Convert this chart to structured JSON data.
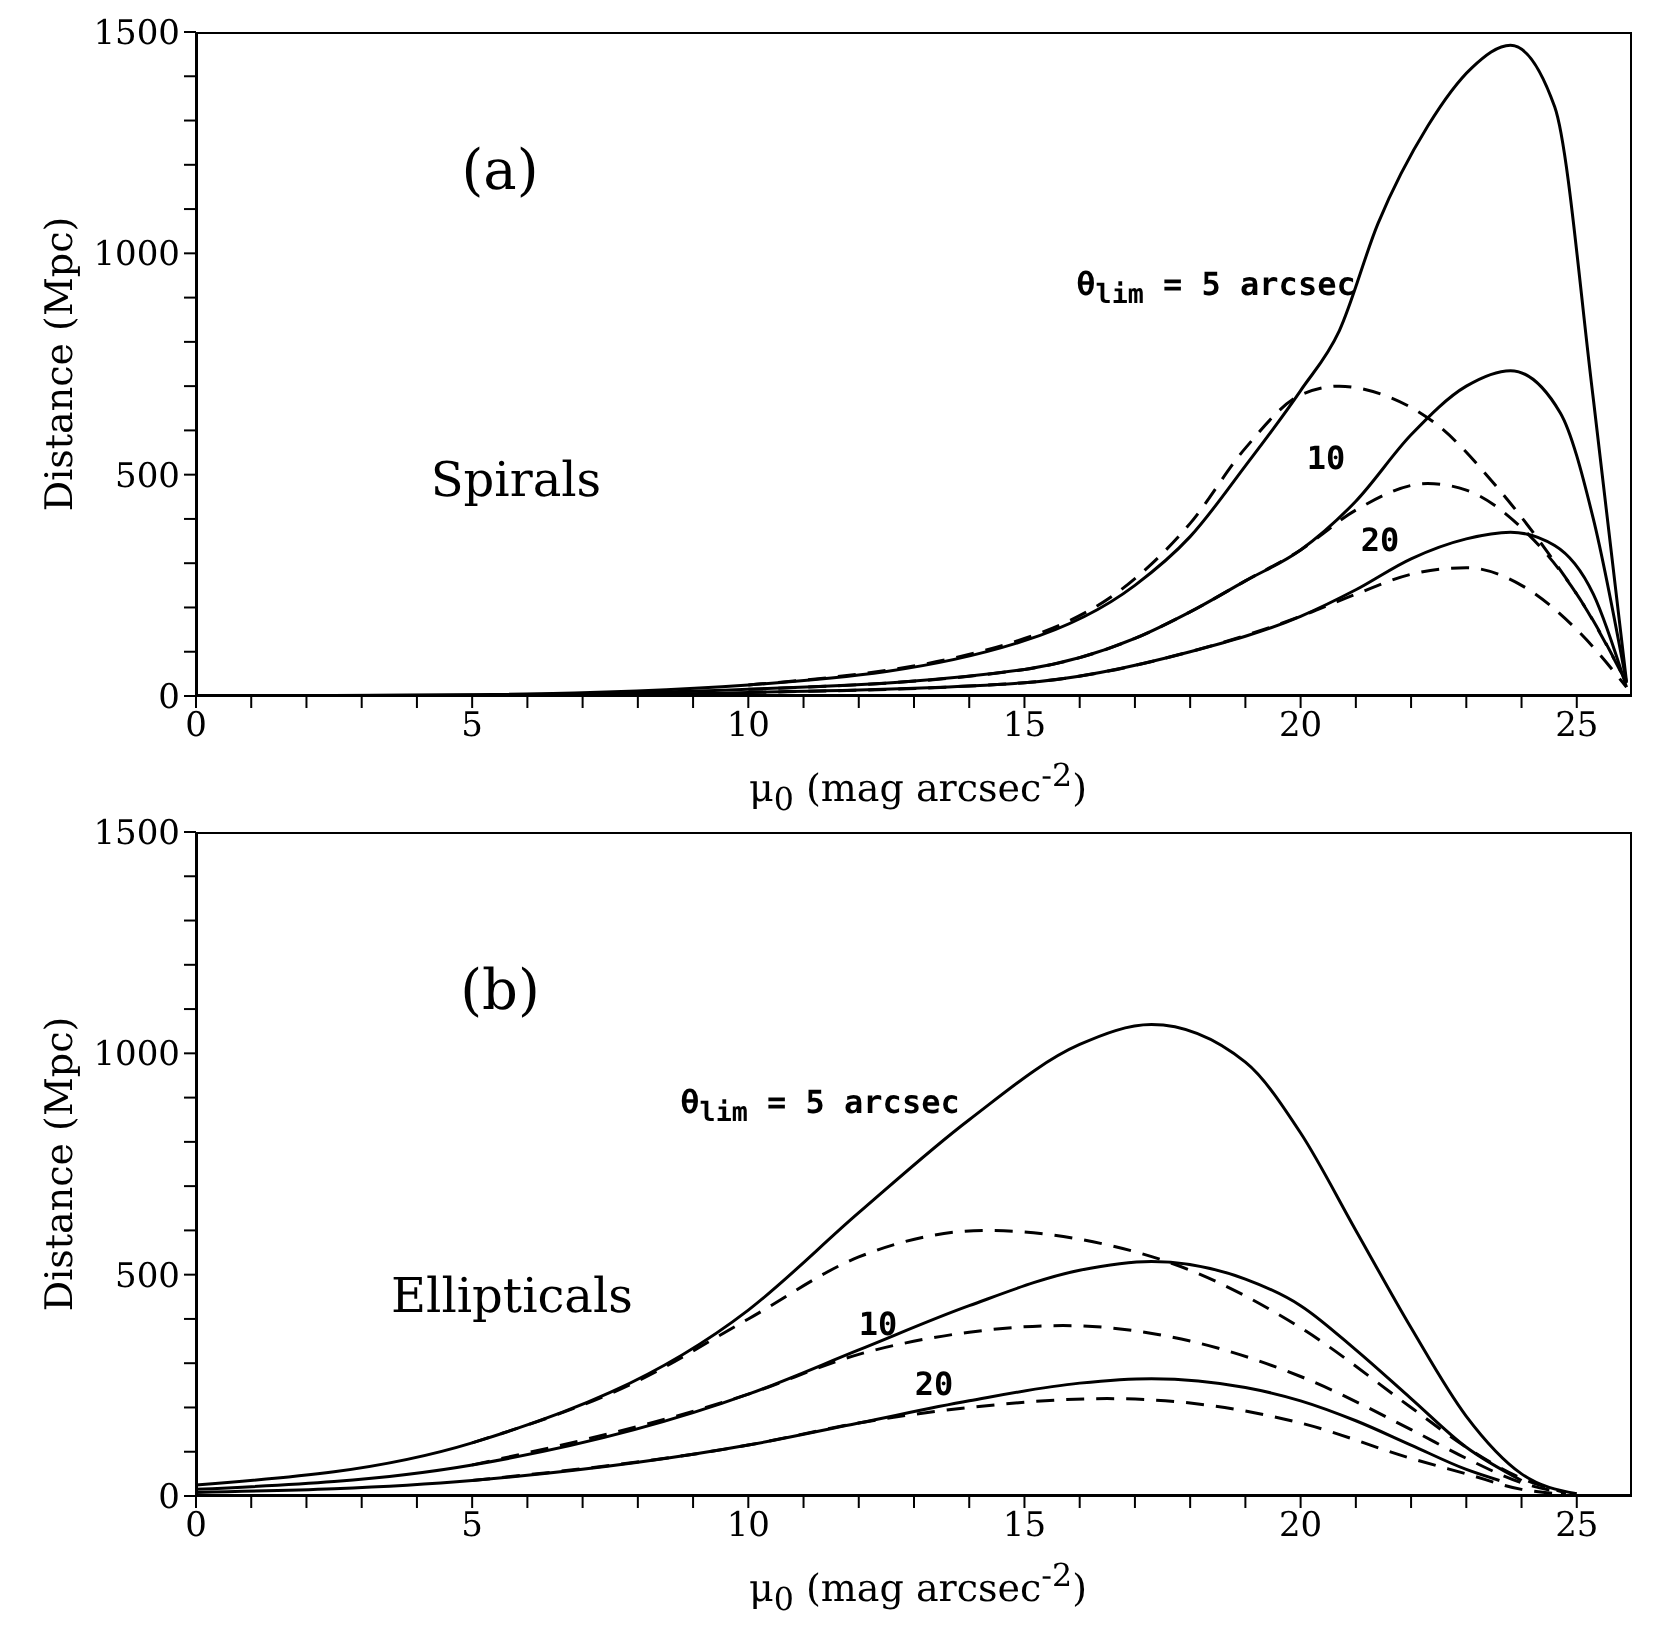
{
  "chart_data": [
    {
      "type": "line",
      "xlabel": "μ$_{0}$ (mag arcsec$^{-2}$)",
      "ylabel": "Distance (Mpc)",
      "xlim": [
        0,
        26
      ],
      "ylim": [
        0,
        1500
      ],
      "xticks": [
        0,
        {
          "value": 1,
          "label": null
        },
        {
          "value": 2,
          "label": null
        },
        {
          "value": 3,
          "label": null
        },
        {
          "value": 4,
          "label": null
        },
        5,
        {
          "value": 6,
          "label": null
        },
        {
          "value": 7,
          "label": null
        },
        {
          "value": 8,
          "label": null
        },
        {
          "value": 9,
          "label": null
        },
        10,
        {
          "value": 11,
          "label": null
        },
        {
          "value": 12,
          "label": null
        },
        {
          "value": 13,
          "label": null
        },
        {
          "value": 14,
          "label": null
        },
        15,
        {
          "value": 16,
          "label": null
        },
        {
          "value": 17,
          "label": null
        },
        {
          "value": 18,
          "label": null
        },
        {
          "value": 19,
          "label": null
        },
        20,
        {
          "value": 21,
          "label": null
        },
        {
          "value": 22,
          "label": null
        },
        {
          "value": 23,
          "label": null
        },
        {
          "value": 24,
          "label": null
        },
        25
      ],
      "yticks": [
        0,
        {
          "value": 100,
          "label": null
        },
        {
          "value": 200,
          "label": null
        },
        {
          "value": 300,
          "label": null
        },
        {
          "value": 400,
          "label": null
        },
        500,
        {
          "value": 600,
          "label": null
        },
        {
          "value": 700,
          "label": null
        },
        {
          "value": 800,
          "label": null
        },
        {
          "value": 900,
          "label": null
        },
        1000,
        {
          "value": 1100,
          "label": null
        },
        {
          "value": 1200,
          "label": null
        },
        {
          "value": 1300,
          "label": null
        },
        {
          "value": 1400,
          "label": null
        },
        1500
      ],
      "grid": false,
      "legend": false,
      "marker": "none",
      "annotations": [
        "(a)",
        "Spirals",
        "θ$_{lim}$ = 5 arcsec",
        "10",
        "20"
      ],
      "series": [
        {
          "color": "#000000",
          "line_style": "solid",
          "x": [
            0,
            5,
            10,
            15,
            17,
            18,
            19,
            20,
            20.7,
            21.4,
            22.3,
            23.1,
            23.8,
            24.6,
            25.3,
            25.9
          ],
          "values": [
            0,
            3,
            25,
            125,
            250,
            360,
            520,
            690,
            825,
            1067,
            1287,
            1419,
            1470,
            1331,
            671,
            33
          ]
        },
        {
          "color": "#000000",
          "line_style": "dashed",
          "x": [
            10,
            15,
            17,
            18,
            19,
            20,
            20.7,
            21.5,
            22.5,
            23.5,
            24.5,
            25.3,
            25.9
          ],
          "values": [
            25,
            130,
            265,
            390,
            560,
            680,
            700,
            680,
            610,
            480,
            320,
            170,
            30
          ]
        },
        {
          "color": "#000000",
          "line_style": "solid",
          "x": [
            3,
            5,
            10,
            15,
            17,
            18,
            19,
            20,
            21,
            22,
            23,
            23.8,
            24.7,
            25.3,
            25.9
          ],
          "values": [
            1,
            2,
            15,
            60,
            130,
            190,
            260,
            330,
            440,
            590,
            700,
            735,
            640,
            400,
            30
          ]
        },
        {
          "color": "#000000",
          "line_style": "dashed",
          "x": [
            10,
            15,
            17,
            18,
            19,
            20,
            21,
            22.3,
            23,
            24,
            25,
            25.9
          ],
          "values": [
            15,
            60,
            130,
            190,
            260,
            330,
            420,
            480,
            465,
            380,
            230,
            30
          ]
        },
        {
          "color": "#000000",
          "line_style": "solid",
          "x": [
            5,
            10,
            15,
            18,
            20,
            21,
            22,
            23,
            23.8,
            24.6,
            25.3,
            25.9
          ],
          "values": [
            1,
            8,
            30,
            100,
            180,
            240,
            310,
            355,
            370,
            340,
            230,
            20
          ]
        },
        {
          "color": "#000000",
          "line_style": "dashed",
          "x": [
            10,
            15,
            18,
            20,
            21,
            22,
            23,
            24,
            25,
            25.9
          ],
          "values": [
            8,
            30,
            100,
            180,
            230,
            275,
            290,
            250,
            150,
            20
          ]
        }
      ]
    },
    {
      "type": "line",
      "xlabel": "μ$_{0}$ (mag arcsec$^{-2}$)",
      "ylabel": "Distance (Mpc)",
      "xlim": [
        0,
        26
      ],
      "ylim": [
        0,
        1500
      ],
      "xticks": [
        0,
        {
          "value": 1,
          "label": null
        },
        {
          "value": 2,
          "label": null
        },
        {
          "value": 3,
          "label": null
        },
        {
          "value": 4,
          "label": null
        },
        5,
        {
          "value": 6,
          "label": null
        },
        {
          "value": 7,
          "label": null
        },
        {
          "value": 8,
          "label": null
        },
        {
          "value": 9,
          "label": null
        },
        10,
        {
          "value": 11,
          "label": null
        },
        {
          "value": 12,
          "label": null
        },
        {
          "value": 13,
          "label": null
        },
        {
          "value": 14,
          "label": null
        },
        15,
        {
          "value": 16,
          "label": null
        },
        {
          "value": 17,
          "label": null
        },
        {
          "value": 18,
          "label": null
        },
        {
          "value": 19,
          "label": null
        },
        20,
        {
          "value": 21,
          "label": null
        },
        {
          "value": 22,
          "label": null
        },
        {
          "value": 23,
          "label": null
        },
        {
          "value": 24,
          "label": null
        },
        25
      ],
      "yticks": [
        0,
        {
          "value": 100,
          "label": null
        },
        {
          "value": 200,
          "label": null
        },
        {
          "value": 300,
          "label": null
        },
        {
          "value": 400,
          "label": null
        },
        500,
        {
          "value": 600,
          "label": null
        },
        {
          "value": 700,
          "label": null
        },
        {
          "value": 800,
          "label": null
        },
        {
          "value": 900,
          "label": null
        },
        1000,
        {
          "value": 1100,
          "label": null
        },
        {
          "value": 1200,
          "label": null
        },
        {
          "value": 1300,
          "label": null
        },
        {
          "value": 1400,
          "label": null
        },
        1500
      ],
      "grid": false,
      "legend": false,
      "marker": "none",
      "annotations": [
        "(b)",
        "Ellipticals",
        "θ$_{lim}$ = 5 arcsec",
        "10",
        "20"
      ],
      "series": [
        {
          "color": "#000000",
          "line_style": "solid",
          "x": [
            0,
            5,
            10,
            12,
            14,
            16,
            17.3,
            19,
            20,
            21,
            22,
            23,
            24,
            25
          ],
          "values": [
            25,
            120,
            420,
            640,
            850,
            1020,
            1065,
            980,
            820,
            600,
            380,
            180,
            50,
            5
          ]
        },
        {
          "color": "#000000",
          "line_style": "dashed",
          "x": [
            5,
            8,
            10,
            12,
            14.3,
            16,
            18,
            20,
            22,
            23,
            24,
            24.8
          ],
          "values": [
            120,
            260,
            400,
            540,
            600,
            580,
            510,
            380,
            200,
            110,
            40,
            7
          ]
        },
        {
          "color": "#000000",
          "line_style": "solid",
          "x": [
            0,
            5,
            10,
            12,
            14,
            16,
            17.3,
            19,
            20,
            21,
            22,
            23,
            24
          ],
          "values": [
            15,
            70,
            230,
            330,
            430,
            510,
            530,
            490,
            430,
            330,
            220,
            110,
            35
          ]
        },
        {
          "color": "#000000",
          "line_style": "dashed",
          "x": [
            5,
            10,
            12,
            14,
            15.7,
            18,
            20,
            22,
            23,
            24,
            24.8
          ],
          "values": [
            70,
            230,
            320,
            370,
            385,
            350,
            270,
            150,
            85,
            30,
            6
          ]
        },
        {
          "color": "#000000",
          "line_style": "solid",
          "x": [
            0,
            5,
            10,
            12,
            14,
            16,
            17.3,
            19,
            20,
            21,
            22,
            23,
            23.6
          ],
          "values": [
            8,
            35,
            115,
            165,
            215,
            255,
            265,
            245,
            215,
            170,
            115,
            60,
            35
          ]
        },
        {
          "color": "#000000",
          "line_style": "dashed",
          "x": [
            5,
            10,
            12,
            14,
            16.5,
            18,
            20,
            22,
            23,
            24,
            24.8
          ],
          "values": [
            35,
            115,
            165,
            200,
            220,
            210,
            165,
            85,
            50,
            15,
            4
          ]
        }
      ]
    }
  ]
}
